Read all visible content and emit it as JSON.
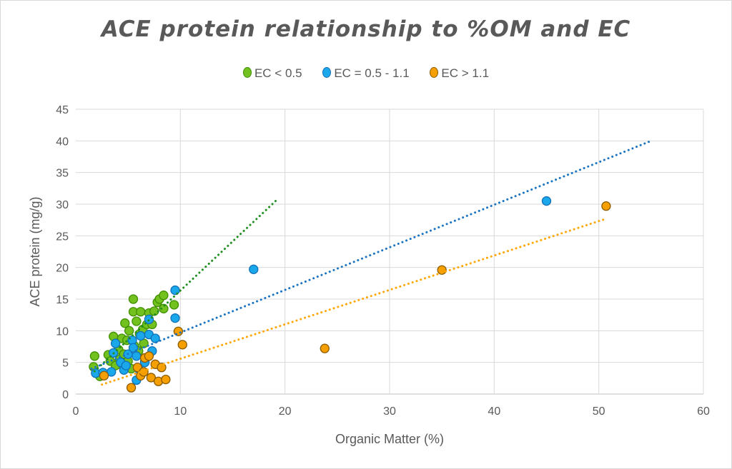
{
  "chart_data": {
    "type": "scatter",
    "title": "ACE protein relationship to %OM and EC",
    "xlabel": "Organic Matter (%)",
    "ylabel": "ACE protein (mg/g)",
    "xlim": [
      0,
      60
    ],
    "ylim": [
      0,
      45
    ],
    "xticks": [
      "0",
      "10",
      "20",
      "30",
      "40",
      "50",
      "60"
    ],
    "yticks": [
      "0",
      "5",
      "10",
      "15",
      "20",
      "25",
      "30",
      "35",
      "40",
      "45"
    ],
    "grid": true,
    "legend_position": "top",
    "series": [
      {
        "name": "EC < 0.5",
        "fill": "#72c11f",
        "stroke": "#3f8f00",
        "trend_color": "#1f8f1f",
        "points": [
          [
            1.8,
            6
          ],
          [
            1.7,
            4.3
          ],
          [
            2.3,
            2.8
          ],
          [
            3.1,
            6.2
          ],
          [
            3.3,
            5.2
          ],
          [
            3.6,
            9.1
          ],
          [
            4.1,
            7
          ],
          [
            4.4,
            8.8
          ],
          [
            4.7,
            11.2
          ],
          [
            4.9,
            8.5
          ],
          [
            5.1,
            10
          ],
          [
            5.5,
            15
          ],
          [
            5.5,
            13
          ],
          [
            5.6,
            7.6
          ],
          [
            5.8,
            11.5
          ],
          [
            6.1,
            9.5
          ],
          [
            6.2,
            13
          ],
          [
            6.4,
            10.2
          ],
          [
            6.8,
            11
          ],
          [
            7,
            12.8
          ],
          [
            7.3,
            11
          ],
          [
            7.5,
            13.1
          ],
          [
            7.8,
            14.5
          ],
          [
            8,
            15
          ],
          [
            8.4,
            15.6
          ],
          [
            8.4,
            13.5
          ],
          [
            9.4,
            14.1
          ],
          [
            4.2,
            5.5
          ],
          [
            4.6,
            6.3
          ],
          [
            5,
            5.2
          ],
          [
            6,
            6.8
          ],
          [
            6.5,
            8
          ],
          [
            3.8,
            4.5
          ],
          [
            5.3,
            4
          ],
          [
            6.6,
            5.2
          ]
        ],
        "trend": [
          [
            1.8,
            3.6
          ],
          [
            19.3,
            30.8
          ]
        ]
      },
      {
        "name": "EC = 0.5 - 1.1",
        "fill": "#1ba8ea",
        "stroke": "#1070b8",
        "trend_color": "#1a74c2",
        "points": [
          [
            1.9,
            3.3
          ],
          [
            2.6,
            3.4
          ],
          [
            3.4,
            3.5
          ],
          [
            3.6,
            6.5
          ],
          [
            3.8,
            8
          ],
          [
            4.3,
            5
          ],
          [
            4.6,
            3.8
          ],
          [
            5,
            6.3
          ],
          [
            5.4,
            8.5
          ],
          [
            5.8,
            6
          ],
          [
            5.8,
            2.2
          ],
          [
            6.2,
            9.2
          ],
          [
            6.6,
            5
          ],
          [
            7,
            11.8
          ],
          [
            7,
            9.4
          ],
          [
            7.3,
            6.8
          ],
          [
            7.6,
            8.8
          ],
          [
            9.5,
            12
          ],
          [
            9.5,
            16.4
          ],
          [
            17,
            19.7
          ],
          [
            45,
            30.5
          ],
          [
            4.8,
            4.5
          ],
          [
            6,
            4
          ],
          [
            5.5,
            7.3
          ]
        ],
        "trend": [
          [
            1.5,
            4
          ],
          [
            55,
            40
          ]
        ]
      },
      {
        "name": "EC > 1.1",
        "fill": "#f5a000",
        "stroke": "#8a5a00",
        "trend_color": "#ffa500",
        "points": [
          [
            2.7,
            2.9
          ],
          [
            5.3,
            1
          ],
          [
            5.9,
            4.2
          ],
          [
            6.2,
            2.9
          ],
          [
            6.5,
            3.5
          ],
          [
            6.6,
            5.7
          ],
          [
            7,
            6
          ],
          [
            7.2,
            2.6
          ],
          [
            7.6,
            4.7
          ],
          [
            7.9,
            2
          ],
          [
            8.2,
            4.2
          ],
          [
            8.6,
            2.3
          ],
          [
            9.8,
            9.9
          ],
          [
            10.2,
            7.8
          ],
          [
            23.8,
            7.2
          ],
          [
            35,
            19.6
          ],
          [
            50.7,
            29.7
          ]
        ],
        "trend": [
          [
            2.5,
            1.5
          ],
          [
            50.7,
            27.7
          ]
        ]
      }
    ]
  }
}
